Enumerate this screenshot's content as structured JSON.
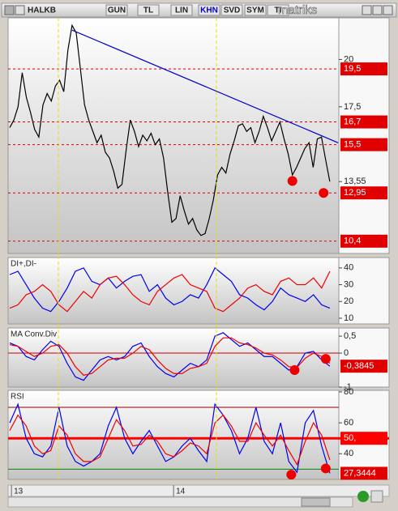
{
  "toolbar": {
    "symbol": "HALKB",
    "buttons": [
      "GUN",
      "TL",
      "LIN",
      "KHN",
      "SVD",
      "SYM",
      "TI"
    ],
    "logo": "matriks"
  },
  "chart_data": [
    {
      "type": "line",
      "xlim": [
        0,
        78
      ],
      "ylim": [
        9.75,
        22.2
      ],
      "xticks": [
        {
          "value": 1,
          "label": "13"
        },
        {
          "value": 40,
          "label": "14"
        }
      ],
      "yticks": [
        20,
        {
          "value": 17.5,
          "label": "17,5"
        },
        {
          "value": 13.55,
          "label": "13,55"
        }
      ],
      "series": [
        {
          "color": "#000000",
          "values": [
            16.4,
            16.8,
            17.5,
            19.3,
            18.0,
            17.2,
            16.3,
            15.9,
            17.6,
            18.2,
            17.8,
            18.6,
            18.9,
            18.3,
            20.5,
            21.8,
            21.4,
            19.5,
            17.6,
            16.8,
            16.2,
            15.6,
            16.0,
            15.1,
            14.8,
            14.1,
            13.2,
            13.4,
            15.2,
            16.8,
            16.2,
            15.4,
            16.0,
            15.7,
            16.1,
            15.5,
            15.8,
            14.8,
            13.0,
            11.4,
            11.6,
            12.8,
            12.0,
            11.3,
            11.6,
            11.0,
            10.7,
            10.8,
            11.6,
            12.6,
            13.9,
            14.3,
            14.0,
            15.0,
            15.7,
            16.5,
            16.6,
            16.2,
            16.4,
            15.6,
            16.2,
            17.0,
            16.4,
            15.7,
            16.2,
            16.7,
            15.8,
            15.0,
            13.9,
            14.3,
            14.8,
            15.3,
            15.6,
            14.3,
            15.8,
            15.9,
            14.7,
            13.55
          ]
        }
      ],
      "levels": [
        {
          "value": 19.5,
          "label": "19,5",
          "color": "#e00000",
          "style": "dashed"
        },
        {
          "value": 16.7,
          "label": "16,7",
          "color": "#e00000",
          "style": "dashed"
        },
        {
          "value": 15.5,
          "label": "15,5",
          "color": "#e00000",
          "style": "dashed"
        },
        {
          "value": 12.95,
          "label": "12,95",
          "color": "#e00000",
          "style": "dashed"
        },
        {
          "value": 10.4,
          "label": "10,4",
          "color": "#e00000",
          "style": "dashed"
        }
      ],
      "trendline": {
        "x": [
          15,
          79
        ],
        "y": [
          21.55,
          15.6
        ],
        "color": "#0000cc"
      },
      "highlights": {
        "color": "#ee0000",
        "x": [
          68,
          75.5
        ],
        "y": [
          13.58,
          12.95
        ]
      }
    },
    {
      "type": "line",
      "title": "DI+,DI-",
      "xlim": [
        0,
        39.5
      ],
      "ylim": [
        6.6,
        46.2
      ],
      "yticks": [
        40,
        30,
        20,
        10
      ],
      "series": [
        {
          "color": "#0000ee",
          "values": [
            36,
            38,
            30,
            22,
            16,
            14,
            20,
            28,
            38,
            40,
            32,
            30,
            34,
            28,
            32,
            35,
            36,
            26,
            30,
            22,
            18,
            20,
            24,
            22,
            30,
            40,
            36,
            32,
            24,
            22,
            18,
            15,
            20,
            28,
            24,
            22,
            20,
            24,
            18,
            16
          ]
        },
        {
          "color": "#ee0000",
          "values": [
            16,
            18,
            24,
            26,
            30,
            26,
            18,
            14,
            20,
            26,
            22,
            30,
            34,
            35,
            30,
            24,
            20,
            18,
            26,
            30,
            34,
            36,
            30,
            28,
            26,
            16,
            14,
            18,
            22,
            28,
            30,
            26,
            24,
            32,
            34,
            30,
            30,
            34,
            28,
            38
          ]
        }
      ]
    },
    {
      "type": "line",
      "title": "MA Conv.Div",
      "xlim": [
        0,
        39.5
      ],
      "ylim": [
        -1.0,
        0.74
      ],
      "yticks": [
        {
          "value": 0.5,
          "label": "0,5"
        },
        0,
        -1
      ],
      "series": [
        {
          "color": "#0000ee",
          "values": [
            0.3,
            0.2,
            -0.1,
            -0.2,
            0.1,
            0.35,
            0.2,
            -0.3,
            -0.7,
            -0.8,
            -0.5,
            -0.2,
            -0.1,
            -0.2,
            -0.1,
            0.2,
            0.3,
            -0.1,
            -0.4,
            -0.6,
            -0.7,
            -0.5,
            -0.3,
            -0.4,
            -0.2,
            0.5,
            0.6,
            0.4,
            0.2,
            0.3,
            0.1,
            -0.1,
            -0.1,
            -0.3,
            -0.5,
            -0.4,
            0.0,
            0.05,
            -0.2,
            -0.3845
          ]
        },
        {
          "color": "#ee0000",
          "values": [
            0.25,
            0.2,
            0.05,
            -0.1,
            0.0,
            0.2,
            0.25,
            0.0,
            -0.4,
            -0.65,
            -0.6,
            -0.4,
            -0.2,
            -0.15,
            -0.15,
            0.0,
            0.2,
            0.1,
            -0.2,
            -0.45,
            -0.6,
            -0.6,
            -0.45,
            -0.4,
            -0.3,
            0.2,
            0.45,
            0.45,
            0.3,
            0.25,
            0.15,
            0.0,
            -0.05,
            -0.2,
            -0.4,
            -0.42,
            -0.15,
            0.0,
            -0.1,
            -0.3
          ]
        }
      ],
      "levels": [
        {
          "value": 0,
          "color": "#cc0000",
          "style": "solid"
        },
        {
          "value": -0.3845,
          "label": "-0,3845",
          "color": "#e00000"
        }
      ],
      "highlights": {
        "color": "#ee0000",
        "x": [
          34.7,
          38.5
        ],
        "y": [
          -0.5,
          -0.17
        ]
      }
    },
    {
      "type": "line",
      "title": "RSI",
      "xlim": [
        0,
        39.5
      ],
      "ylim": [
        23.4,
        81
      ],
      "yticks": [
        80,
        60,
        40
      ],
      "series": [
        {
          "color": "#0000ee",
          "values": [
            60,
            72,
            50,
            40,
            38,
            45,
            70,
            45,
            35,
            32,
            35,
            40,
            58,
            70,
            50,
            40,
            48,
            55,
            45,
            35,
            38,
            45,
            50,
            42,
            35,
            72,
            65,
            55,
            40,
            50,
            70,
            48,
            40,
            60,
            35,
            28,
            60,
            68,
            45,
            27.3444
          ]
        },
        {
          "color": "#ee0000",
          "values": [
            55,
            65,
            58,
            45,
            40,
            42,
            58,
            52,
            40,
            35,
            35,
            38,
            50,
            62,
            55,
            45,
            46,
            52,
            48,
            40,
            38,
            42,
            47,
            45,
            40,
            60,
            65,
            58,
            48,
            48,
            60,
            52,
            45,
            52,
            42,
            33,
            48,
            60,
            52,
            36
          ]
        }
      ],
      "levels": [
        {
          "value": 70,
          "color": "#990000",
          "style": "solid"
        },
        {
          "value": 50,
          "label": "50,",
          "color": "#ff0000",
          "style": "thick"
        },
        {
          "value": 30,
          "color": "#008800",
          "style": "solid"
        },
        {
          "value": 27.3444,
          "label": "27,3444",
          "color": "#e00000"
        }
      ],
      "highlights": {
        "color": "#ee0000",
        "x": [
          34.3,
          38.5
        ],
        "y": [
          26.5,
          30.5
        ]
      }
    }
  ]
}
